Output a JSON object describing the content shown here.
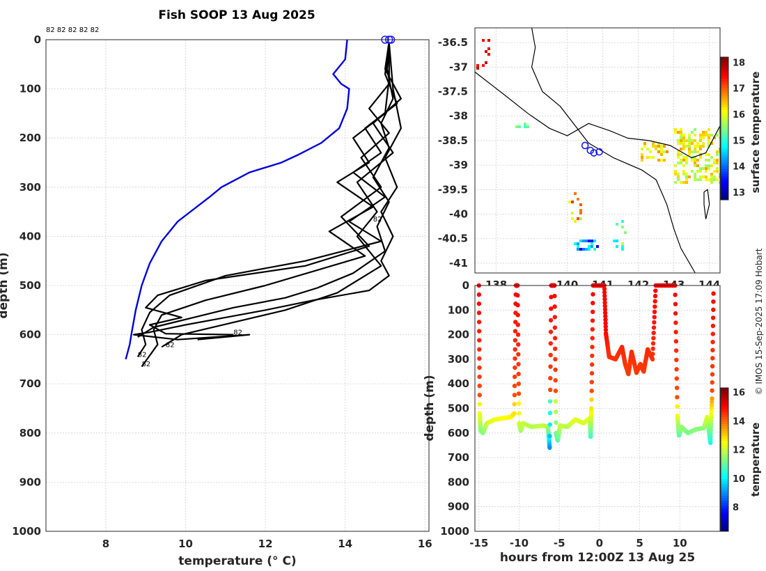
{
  "title": "Fish SOOP 13 Aug 2025",
  "credit": "© IMOS 15-Sep-2025 17:09 Hobart",
  "chart_data": [
    {
      "type": "line",
      "name": "temperature-profiles",
      "xlabel": "temperature (° C)",
      "ylabel": "depth (m)",
      "xlim": [
        6.5,
        16.1
      ],
      "ylim": [
        0,
        1000
      ],
      "xticks": [
        8,
        10,
        12,
        14,
        16
      ],
      "yticks": [
        0,
        100,
        200,
        300,
        400,
        500,
        600,
        700,
        800,
        900,
        1000
      ],
      "top_label": "82 82 82 82 82",
      "end_labels": [
        {
          "text": "82",
          "x": 11.2,
          "y": 600
        },
        {
          "text": "82",
          "x": 9.5,
          "y": 625
        },
        {
          "text": "82",
          "x": 8.8,
          "y": 645
        },
        {
          "text": "82",
          "x": 8.9,
          "y": 664
        },
        {
          "text": "82",
          "x": 14.7,
          "y": 370
        }
      ],
      "climatology": {
        "name": "climatology",
        "color": "#0000dd",
        "points": [
          [
            14.05,
            0
          ],
          [
            14.0,
            40
          ],
          [
            13.7,
            70
          ],
          [
            13.9,
            90
          ],
          [
            14.1,
            100
          ],
          [
            14.05,
            140
          ],
          [
            13.85,
            180
          ],
          [
            13.4,
            210
          ],
          [
            12.8,
            235
          ],
          [
            12.4,
            250
          ],
          [
            11.6,
            270
          ],
          [
            10.9,
            300
          ],
          [
            10.6,
            320
          ],
          [
            10.2,
            345
          ],
          [
            9.8,
            370
          ],
          [
            9.4,
            410
          ],
          [
            9.1,
            455
          ],
          [
            8.9,
            500
          ],
          [
            8.75,
            550
          ],
          [
            8.65,
            595
          ],
          [
            8.6,
            620
          ],
          [
            8.5,
            650
          ]
        ]
      },
      "profiles": [
        [
          [
            15.1,
            5
          ],
          [
            15.05,
            60
          ],
          [
            15.2,
            120
          ],
          [
            14.9,
            170
          ],
          [
            15.1,
            220
          ],
          [
            14.7,
            280
          ],
          [
            15.1,
            330
          ],
          [
            14.8,
            380
          ],
          [
            15.0,
            430
          ],
          [
            14.2,
            475
          ],
          [
            13.3,
            505
          ],
          [
            12.5,
            525
          ],
          [
            11.2,
            545
          ],
          [
            10.2,
            565
          ],
          [
            9.2,
            585
          ],
          [
            8.8,
            605
          ]
        ],
        [
          [
            15.1,
            5
          ],
          [
            15.0,
            70
          ],
          [
            15.3,
            130
          ],
          [
            14.5,
            180
          ],
          [
            14.9,
            230
          ],
          [
            14.2,
            270
          ],
          [
            15.0,
            320
          ],
          [
            14.1,
            370
          ],
          [
            14.9,
            410
          ],
          [
            13.0,
            450
          ],
          [
            11.0,
            480
          ],
          [
            9.6,
            520
          ],
          [
            9.1,
            555
          ],
          [
            8.9,
            590
          ],
          [
            9.0,
            620
          ],
          [
            8.8,
            645
          ]
        ],
        [
          [
            15.1,
            5
          ],
          [
            15.1,
            80
          ],
          [
            15.0,
            150
          ],
          [
            14.2,
            200
          ],
          [
            14.6,
            250
          ],
          [
            13.8,
            290
          ],
          [
            14.7,
            340
          ],
          [
            13.6,
            390
          ],
          [
            14.5,
            440
          ],
          [
            12.0,
            500
          ],
          [
            10.5,
            530
          ],
          [
            9.4,
            560
          ],
          [
            9.2,
            590
          ],
          [
            9.3,
            620
          ],
          [
            8.9,
            665
          ]
        ],
        [
          [
            15.1,
            5
          ],
          [
            15.0,
            60
          ],
          [
            15.4,
            120
          ],
          [
            14.7,
            170
          ],
          [
            15.2,
            230
          ],
          [
            14.3,
            290
          ],
          [
            14.8,
            350
          ],
          [
            14.3,
            400
          ],
          [
            14.9,
            460
          ],
          [
            13.8,
            515
          ],
          [
            12.5,
            550
          ],
          [
            11.2,
            575
          ],
          [
            9.9,
            600
          ],
          [
            9.4,
            625
          ]
        ],
        [
          [
            15.1,
            5
          ],
          [
            15.1,
            90
          ],
          [
            14.6,
            140
          ],
          [
            15.1,
            190
          ],
          [
            14.4,
            240
          ],
          [
            14.9,
            300
          ],
          [
            13.9,
            360
          ],
          [
            14.6,
            420
          ],
          [
            13.0,
            460
          ],
          [
            10.5,
            490
          ],
          [
            9.3,
            520
          ],
          [
            9.0,
            545
          ],
          [
            9.9,
            565
          ],
          [
            9.1,
            580
          ],
          [
            9.5,
            598
          ],
          [
            11.2,
            600
          ]
        ],
        [
          [
            15.1,
            5
          ],
          [
            15.2,
            100
          ],
          [
            15.4,
            180
          ],
          [
            15.0,
            240
          ],
          [
            15.3,
            300
          ],
          [
            14.9,
            350
          ],
          [
            15.2,
            400
          ],
          [
            14.9,
            450
          ],
          [
            15.1,
            480
          ],
          [
            14.6,
            510
          ],
          [
            13.2,
            530
          ],
          [
            12.0,
            550
          ],
          [
            11.0,
            565
          ],
          [
            10.0,
            580
          ],
          [
            9.1,
            595
          ],
          [
            8.7,
            600
          ],
          [
            9.8,
            610
          ],
          [
            11.6,
            600
          ],
          [
            10.3,
            610
          ]
        ]
      ],
      "surface_markers_x": [
        15.0,
        15.1,
        15.15
      ]
    },
    {
      "type": "heatmap",
      "name": "surface-temperature-map",
      "ylim": [
        -41.2,
        -36.2
      ],
      "xlim": [
        137.4,
        144.3
      ],
      "yticks": [
        -36.5,
        -37,
        -37.5,
        -38,
        -38.5,
        -39,
        -39.5,
        -40,
        -40.5,
        -41
      ],
      "xticks": [
        "138",
        "140",
        "141",
        "142",
        "143",
        "144"
      ],
      "colorbar_label": "surface temperature",
      "colorbar_ticks": [
        13,
        14,
        15,
        16,
        17,
        18
      ],
      "colorbar_range": [
        12.7,
        18.2
      ],
      "track": [
        [
          140.5,
          -38.6
        ],
        [
          140.65,
          -38.7
        ],
        [
          140.75,
          -38.75
        ],
        [
          140.9,
          -38.73
        ]
      ]
    },
    {
      "type": "scatter",
      "name": "depth-time-section",
      "xlabel": "hours from 12:00Z 13 Aug 25",
      "ylabel": "depth (m)",
      "xlim": [
        -15.5,
        15.0
      ],
      "ylim": [
        0,
        1000
      ],
      "xticks": [
        -15,
        -10,
        -5,
        0,
        5,
        10
      ],
      "yticks": [
        0,
        100,
        200,
        300,
        400,
        500,
        600,
        700,
        800,
        900,
        1000
      ],
      "colorbar_label": "temperature",
      "colorbar_ticks": [
        8,
        10,
        12,
        14,
        16
      ],
      "colorbar_range": [
        6.3,
        16.3
      ],
      "track": [
        [
          -15,
          0,
          15
        ],
        [
          -14.9,
          520,
          12.5
        ],
        [
          -14.8,
          590,
          11.5
        ],
        [
          -14.5,
          600,
          11.3
        ],
        [
          -14,
          560,
          12
        ],
        [
          -13,
          545,
          12.4
        ],
        [
          -12,
          540,
          12.5
        ],
        [
          -11,
          535,
          12.6
        ],
        [
          -10.6,
          520,
          12.8
        ],
        [
          -10.4,
          0,
          15
        ],
        [
          -10.2,
          0,
          15
        ],
        [
          -10,
          560,
          12.2
        ],
        [
          -9.8,
          590,
          11.6
        ],
        [
          -9.5,
          560,
          12
        ],
        [
          -8.5,
          575,
          11.8
        ],
        [
          -7,
          570,
          12
        ],
        [
          -6.4,
          575,
          11.8
        ],
        [
          -6.2,
          660,
          9
        ],
        [
          -6,
          0,
          15
        ],
        [
          -5.6,
          0,
          15
        ],
        [
          -5.4,
          600,
          11.2
        ],
        [
          -5.2,
          630,
          10.8
        ],
        [
          -4.9,
          570,
          12
        ],
        [
          -4,
          575,
          11.8
        ],
        [
          -3,
          545,
          12.3
        ],
        [
          -2,
          560,
          12.1
        ],
        [
          -1.2,
          540,
          12.4
        ],
        [
          -1.1,
          615,
          10.6
        ],
        [
          -1,
          500,
          12.8
        ],
        [
          -0.8,
          0,
          15
        ],
        [
          0.6,
          0,
          15
        ],
        [
          0.8,
          195,
          15
        ],
        [
          1.2,
          290,
          14.5
        ],
        [
          2,
          300,
          14.5
        ],
        [
          2.8,
          250,
          14.6
        ],
        [
          3.2,
          320,
          14.3
        ],
        [
          3.6,
          360,
          14.1
        ],
        [
          4,
          270,
          14.5
        ],
        [
          4.6,
          355,
          14.1
        ],
        [
          5.1,
          320,
          14.3
        ],
        [
          5.5,
          350,
          14.2
        ],
        [
          6,
          260,
          14.5
        ],
        [
          6.6,
          300,
          14.4
        ],
        [
          7,
          0,
          15
        ],
        [
          9.4,
          0,
          15
        ],
        [
          9.7,
          530,
          12.5
        ],
        [
          9.9,
          610,
          10.8
        ],
        [
          10.2,
          575,
          11.6
        ],
        [
          11,
          600,
          11.2
        ],
        [
          12,
          585,
          11.4
        ],
        [
          13,
          580,
          11.4
        ],
        [
          13.4,
          535,
          12.3
        ],
        [
          13.8,
          640,
          10.2
        ],
        [
          14,
          460,
          13.5
        ],
        [
          14.2,
          0,
          15
        ]
      ]
    }
  ]
}
